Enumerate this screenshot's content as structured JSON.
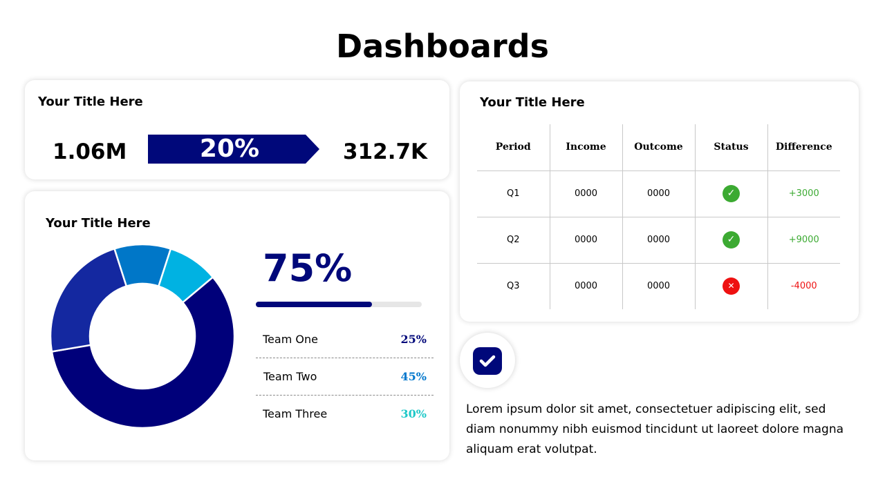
{
  "title": "Dashboards",
  "kpi_card": {
    "title": "Your Title Here",
    "left_value": "1.06M",
    "change": "20%",
    "right_value": "312.7K"
  },
  "donut_card": {
    "title": "Your Title Here",
    "percent": "75%",
    "progress_fill_percent": 70,
    "teams": [
      {
        "label": "Team One",
        "value": "25%",
        "color": "#00087a"
      },
      {
        "label": "Team Two",
        "value": "45%",
        "color": "#0077cc"
      },
      {
        "label": "Team Three",
        "value": "30%",
        "color": "#1ec8c8"
      }
    ]
  },
  "chart_data": {
    "type": "pie",
    "donut": true,
    "values": [
      59,
      23,
      10,
      9
    ],
    "colors": [
      "#00007a",
      "#1428a0",
      "#0077c8",
      "#00b2e2"
    ],
    "start_angle_deg": 50
  },
  "table_card": {
    "title": "Your Title Here",
    "headers": [
      "Period",
      "Income",
      "Outcome",
      "Status",
      "Difference"
    ],
    "rows": [
      {
        "period": "Q1",
        "income": "0000",
        "outcome": "0000",
        "status": "ok",
        "difference": "+3000"
      },
      {
        "period": "Q2",
        "income": "0000",
        "outcome": "0000",
        "status": "ok",
        "difference": "+9000"
      },
      {
        "period": "Q3",
        "income": "0000",
        "outcome": "0000",
        "status": "fail",
        "difference": "-4000"
      }
    ]
  },
  "colors": {
    "ok": "#3caa32",
    "fail": "#ee1111",
    "accent": "#00087a"
  },
  "icons": {
    "ok": "check-circle",
    "fail": "x-circle",
    "feature": "checkbox-icon"
  },
  "status_glyphs": {
    "ok": "✓",
    "fail": "✕"
  },
  "paragraph": "Lorem ipsum dolor sit amet, consectetuer adipiscing elit, sed diam nonummy nibh euismod tincidunt ut laoreet dolore magna aliquam erat volutpat."
}
